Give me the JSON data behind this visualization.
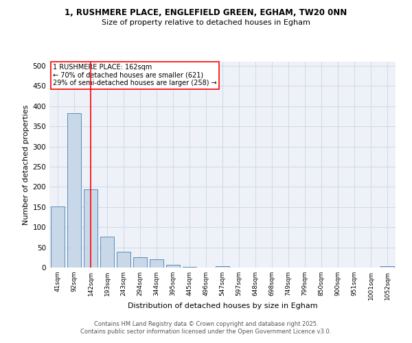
{
  "title_line1": "1, RUSHMERE PLACE, ENGLEFIELD GREEN, EGHAM, TW20 0NN",
  "title_line2": "Size of property relative to detached houses in Egham",
  "bar_labels": [
    "41sqm",
    "92sqm",
    "142sqm",
    "193sqm",
    "243sqm",
    "294sqm",
    "344sqm",
    "395sqm",
    "445sqm",
    "496sqm",
    "547sqm",
    "597sqm",
    "648sqm",
    "698sqm",
    "749sqm",
    "799sqm",
    "850sqm",
    "900sqm",
    "951sqm",
    "1001sqm",
    "1052sqm"
  ],
  "bar_values": [
    152,
    383,
    193,
    77,
    39,
    26,
    20,
    7,
    2,
    0,
    3,
    0,
    0,
    0,
    0,
    0,
    0,
    0,
    0,
    0,
    3
  ],
  "bar_color": "#c8d8e8",
  "bar_edge_color": "#5b8db8",
  "grid_color": "#d0dce8",
  "bg_color": "#eef2f8",
  "vline_x": 2,
  "vline_color": "red",
  "xlabel": "Distribution of detached houses by size in Egham",
  "ylabel": "Number of detached properties",
  "annotation_text": "1 RUSHMERE PLACE: 162sqm\n← 70% of detached houses are smaller (621)\n29% of semi-detached houses are larger (258) →",
  "annotation_box_color": "white",
  "annotation_box_edge": "red",
  "footer_line1": "Contains HM Land Registry data © Crown copyright and database right 2025.",
  "footer_line2": "Contains public sector information licensed under the Open Government Licence v3.0.",
  "ylim": [
    0,
    510
  ],
  "yticks": [
    0,
    50,
    100,
    150,
    200,
    250,
    300,
    350,
    400,
    450,
    500
  ]
}
